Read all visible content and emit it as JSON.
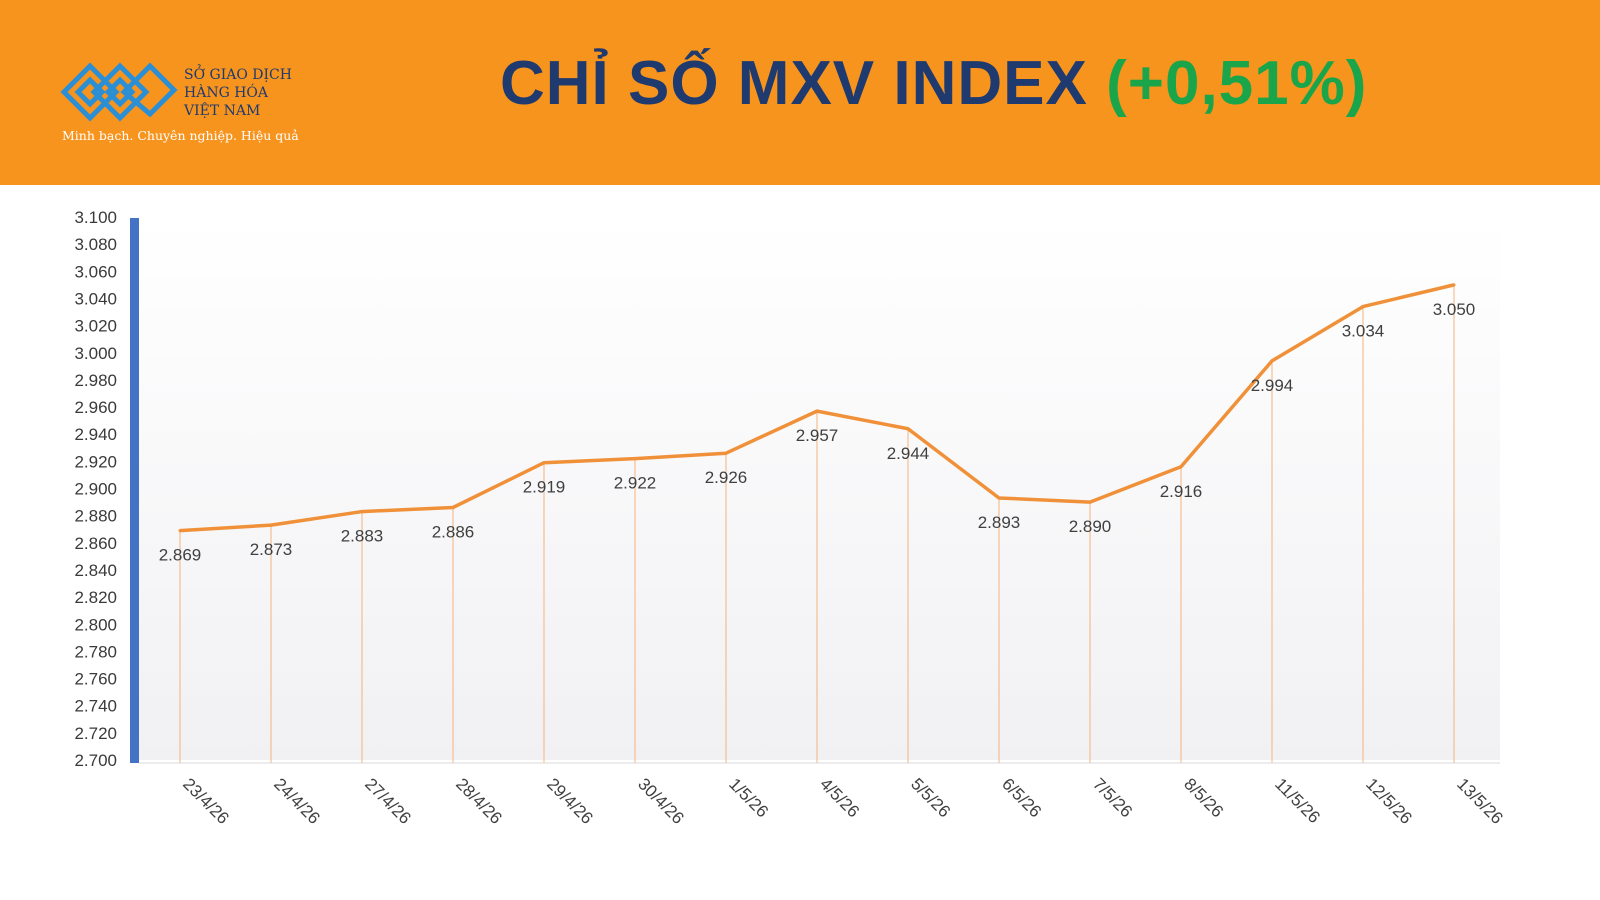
{
  "header": {
    "title": "CHỈ SỐ MXV INDEX",
    "change": "(+0,51%)",
    "colors": {
      "background": "#f7941e",
      "title": "#1f3a6e",
      "change": "#1aa54a"
    }
  },
  "logo": {
    "line1": "SỞ GIAO DỊCH",
    "line2": "HÀNG HÓA",
    "line3": "VIỆT NAM",
    "tagline": "Minh bạch. Chuyên nghiệp. Hiệu quả"
  },
  "chart_data": {
    "type": "line",
    "categories": [
      "23/4/26",
      "24/4/26",
      "27/4/26",
      "28/4/26",
      "29/4/26",
      "30/4/26",
      "1/5/26",
      "4/5/26",
      "5/5/26",
      "6/5/26",
      "7/5/26",
      "8/5/26",
      "11/5/26",
      "12/5/26",
      "13/5/26"
    ],
    "values": [
      2869,
      2873,
      2883,
      2886,
      2919,
      2922,
      2926,
      2957,
      2944,
      2893,
      2890,
      2916,
      2994,
      3034,
      3050
    ],
    "value_labels": [
      "2.869",
      "2.873",
      "2.883",
      "2.886",
      "2.919",
      "2.922",
      "2.926",
      "2.957",
      "2.944",
      "2.893",
      "2.890",
      "2.916",
      "2.994",
      "3.034",
      "3.050"
    ],
    "ylim": [
      2700,
      3100
    ],
    "yticks": [
      3100,
      3080,
      3060,
      3040,
      3020,
      3000,
      2980,
      2960,
      2940,
      2920,
      2900,
      2880,
      2860,
      2840,
      2820,
      2800,
      2780,
      2760,
      2740,
      2720,
      2700
    ],
    "ytick_labels": [
      "3.100",
      "3.080",
      "3.060",
      "3.040",
      "3.020",
      "3.000",
      "2.980",
      "2.960",
      "2.940",
      "2.920",
      "2.900",
      "2.880",
      "2.860",
      "2.840",
      "2.820",
      "2.800",
      "2.780",
      "2.760",
      "2.740",
      "2.720",
      "2.700"
    ],
    "line_color": "#f0913a",
    "axis_color": "#4472c4",
    "grid": false
  }
}
